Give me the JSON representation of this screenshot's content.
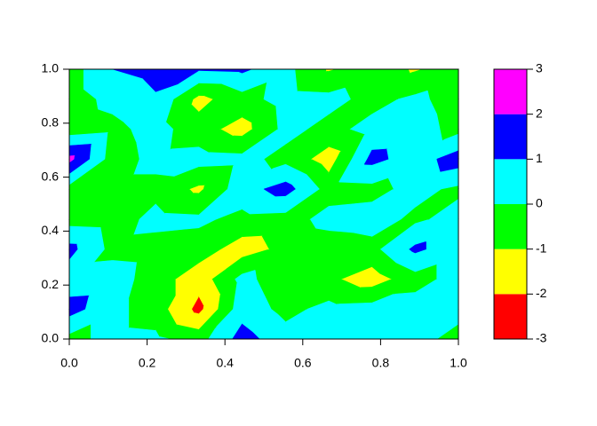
{
  "chart_data": {
    "type": "contour",
    "x": [
      0,
      0.111,
      0.222,
      0.333,
      0.444,
      0.556,
      0.667,
      0.778,
      0.889,
      1
    ],
    "y": [
      0,
      0.111,
      0.222,
      0.333,
      0.444,
      0.556,
      0.667,
      0.778,
      0.889,
      1
    ],
    "z": [
      [
        -0.3,
        0.3,
        0.2,
        -0.4,
        1.4,
        0.4,
        0.5,
        0.4,
        0.3,
        -0.3
      ],
      [
        1.4,
        0.3,
        -0.5,
        -2.3,
        0.6,
        -0.3,
        0.3,
        0.4,
        0.5,
        0.3
      ],
      [
        0.4,
        0.5,
        -0.5,
        -1.6,
        0.3,
        -0.6,
        -0.8,
        -1.5,
        -0.4,
        0.4
      ],
      [
        1.3,
        -0.3,
        -0.4,
        -0.5,
        -1.5,
        -0.7,
        -0.5,
        -0.3,
        1.2,
        0.4
      ],
      [
        -0.4,
        -0.5,
        0.3,
        0.2,
        -0.3,
        -0.4,
        0.3,
        0.4,
        -0.2,
        0.4
      ],
      [
        -0.4,
        -0.3,
        -0.3,
        -1.2,
        0.6,
        1.4,
        -0.4,
        -0.3,
        0.3,
        -0.2
      ],
      [
        2.3,
        -0.5,
        0.3,
        0.4,
        0.3,
        -0.3,
        -1.5,
        1.3,
        0.5,
        1.5
      ],
      [
        -0.6,
        -0.3,
        0.4,
        -0.6,
        -1.4,
        0.3,
        -0.3,
        0.3,
        0.4,
        -0.3
      ],
      [
        -0.5,
        0.3,
        0.9,
        -1.3,
        -0.4,
        0.4,
        0.3,
        -0.3,
        0.2,
        -0.4
      ],
      [
        -0.5,
        1.0,
        1.3,
        1.1,
        1.2,
        0.3,
        -1.1,
        -0.5,
        -1.1,
        -0.5
      ]
    ],
    "colors": [
      "#ff0000",
      "#ffff00",
      "#00ff00",
      "#00ffff",
      "#0000ff",
      "#ff00ff"
    ],
    "xlim": [
      0,
      1
    ],
    "ylim": [
      0,
      1
    ],
    "zlim": [
      -3,
      3
    ],
    "xticks": [
      {
        "value": 0,
        "label": "0.0"
      },
      {
        "value": 0.2,
        "label": "0.2"
      },
      {
        "value": 0.4,
        "label": "0.4"
      },
      {
        "value": 0.6,
        "label": "0.6"
      },
      {
        "value": 0.8,
        "label": "0.8"
      },
      {
        "value": 1,
        "label": "1.0"
      }
    ],
    "yticks": [
      {
        "value": 0,
        "label": "0.0"
      },
      {
        "value": 0.2,
        "label": "0.2"
      },
      {
        "value": 0.4,
        "label": "0.4"
      },
      {
        "value": 0.6,
        "label": "0.6"
      },
      {
        "value": 0.8,
        "label": "0.8"
      },
      {
        "value": 1,
        "label": "1.0"
      }
    ],
    "zticks": [
      -3,
      -2,
      -1,
      0,
      1,
      2,
      3
    ]
  }
}
